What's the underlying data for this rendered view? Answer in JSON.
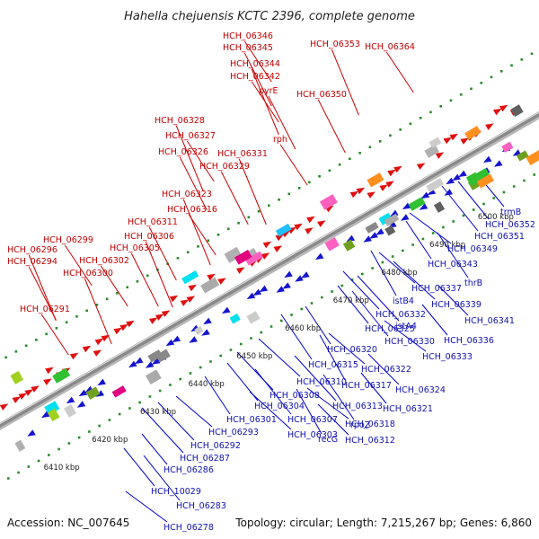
{
  "title": "Hahella chejuensis KCTC 2396, complete genome",
  "accession": "Accession: NC_007645",
  "topology": "Topology: circular; Length: 7,215,267 bp; Genes: 6,860",
  "colors": {
    "forward": "#e01010",
    "reverse": "#1515d0",
    "line_forward": "#cc0000",
    "line_reverse": "#0000cc",
    "backbone": "#8a8a8a",
    "ticks": "#2a8a2a"
  },
  "icons": [
    "forward-arrow",
    "reverse-arrow",
    "gene-block"
  ],
  "scale_labels": [
    "6410 kbp",
    "6420 kbp",
    "6430 kbp",
    "6440 kbp",
    "6450 kbp",
    "6460 kbp",
    "6470 kbp",
    "6480 kbp",
    "6490 kbp",
    "6500 kbp"
  ],
  "forward_labels": [
    "HCH_06346",
    "HCH_06345",
    "HCH_06344",
    "HCH_06342",
    "pyrE",
    "HCH_06353",
    "HCH_06364",
    "HCH_06350",
    "HCH_06328",
    "HCH_06327",
    "HCH_06326",
    "HCH_06331",
    "rph",
    "HCH_06329",
    "HCH_06323",
    "HCH_06316",
    "HCH_06311",
    "HCH_06306",
    "HCH_06299",
    "HCH_06305",
    "HCH_06296",
    "HCH_06302",
    "HCH_06294",
    "HCH_06300",
    "HCH_06291"
  ],
  "reverse_labels": [
    "trmB",
    "HCH_06352",
    "HCH_06351",
    "HCH_06349",
    "HCH_06343",
    "thrB",
    "HCH_06337",
    "HCH_06339",
    "istB4",
    "HCH_06341",
    "HCH_06332",
    "istA4",
    "HCH_06336",
    "HCH_06325",
    "HCH_06330",
    "HCH_06333",
    "HCH_06320",
    "HCH_06315",
    "HCH_06322",
    "HCH_06310",
    "HCH_06317",
    "HCH_06324",
    "HCH_06308",
    "HCH_06313",
    "HCH_06321",
    "HCH_06304",
    "HCH_06307",
    "HCH_06318",
    "HCH_06301",
    "rpoZ",
    "HCH_06293",
    "HCH_06303",
    "recG",
    "HCH_06312",
    "HCH_06292",
    "HCH_06287",
    "HCH_06286",
    "HCH_10029",
    "HCH_06283",
    "HCH_06278"
  ]
}
